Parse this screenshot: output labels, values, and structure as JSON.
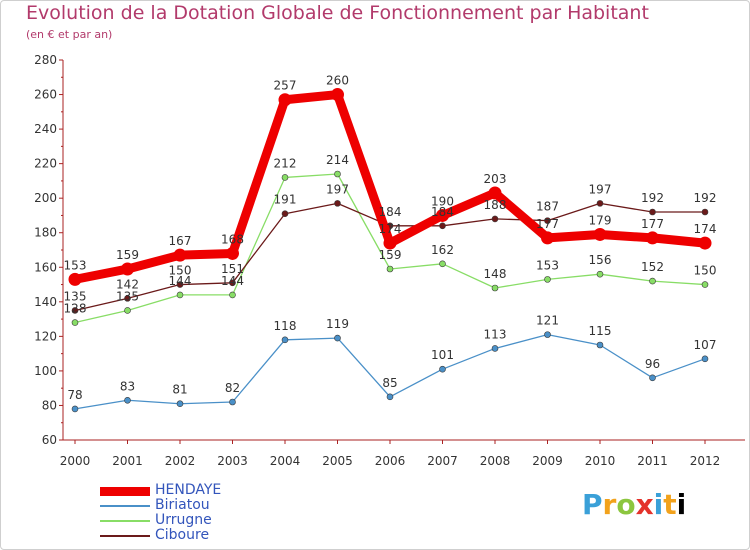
{
  "header": {
    "title": "Evolution de la Dotation Globale de Fonctionnement par Habitant",
    "subtitle": "(en € et par an)"
  },
  "logo": {
    "letters": [
      "P",
      "r",
      "o",
      "x",
      "i",
      "t",
      "i"
    ]
  },
  "chart_data": {
    "type": "line",
    "title": "Evolution de la Dotation Globale de Fonctionnement par Habitant",
    "subtitle": "(en € et par an)",
    "xlabel": "",
    "ylabel": "",
    "categories": [
      "2000",
      "2001",
      "2002",
      "2003",
      "2004",
      "2005",
      "2006",
      "2007",
      "2008",
      "2009",
      "2010",
      "2011",
      "2012"
    ],
    "ylim": [
      60,
      280
    ],
    "yticks": [
      60,
      80,
      100,
      120,
      140,
      160,
      180,
      200,
      220,
      240,
      260,
      280
    ],
    "grid": false,
    "legend_position": "bottom-left",
    "series": [
      {
        "name": "HENDAYE",
        "color": "#ee0000",
        "emphasis": true,
        "values": [
          153,
          159,
          167,
          168,
          257,
          260,
          174,
          190,
          203,
          177,
          179,
          177,
          174
        ],
        "labels": [
          "153",
          "159",
          "167",
          "168",
          "257",
          "260",
          "174",
          "190",
          "203",
          "177",
          "179",
          "177",
          "174"
        ]
      },
      {
        "name": "Biriatou",
        "color": "#4a90c8",
        "emphasis": false,
        "values": [
          78,
          83,
          81,
          82,
          118,
          119,
          85,
          101,
          113,
          121,
          115,
          96,
          107
        ],
        "labels": [
          "78",
          "83",
          "81",
          "82",
          "118",
          "119",
          "85",
          "101",
          "113",
          "121",
          "115",
          "96",
          "107"
        ]
      },
      {
        "name": "Urrugne",
        "color": "#88dd66",
        "emphasis": false,
        "values": [
          128,
          135,
          144,
          144,
          212,
          214,
          159,
          162,
          148,
          153,
          156,
          152,
          150
        ],
        "labels": [
          "128",
          "135",
          "144",
          "144",
          "212",
          "214",
          "159",
          "162",
          "148",
          "153",
          "156",
          "152",
          "150"
        ]
      },
      {
        "name": "Ciboure",
        "color": "#6b1a1a",
        "emphasis": false,
        "values": [
          135,
          142,
          150,
          151,
          191,
          197,
          184,
          184,
          188,
          187,
          197,
          192,
          192
        ],
        "labels": [
          "135",
          "142",
          "150",
          "151",
          "191",
          "197",
          "184",
          "184",
          "188",
          "187",
          "197",
          "192",
          "192"
        ]
      }
    ]
  }
}
